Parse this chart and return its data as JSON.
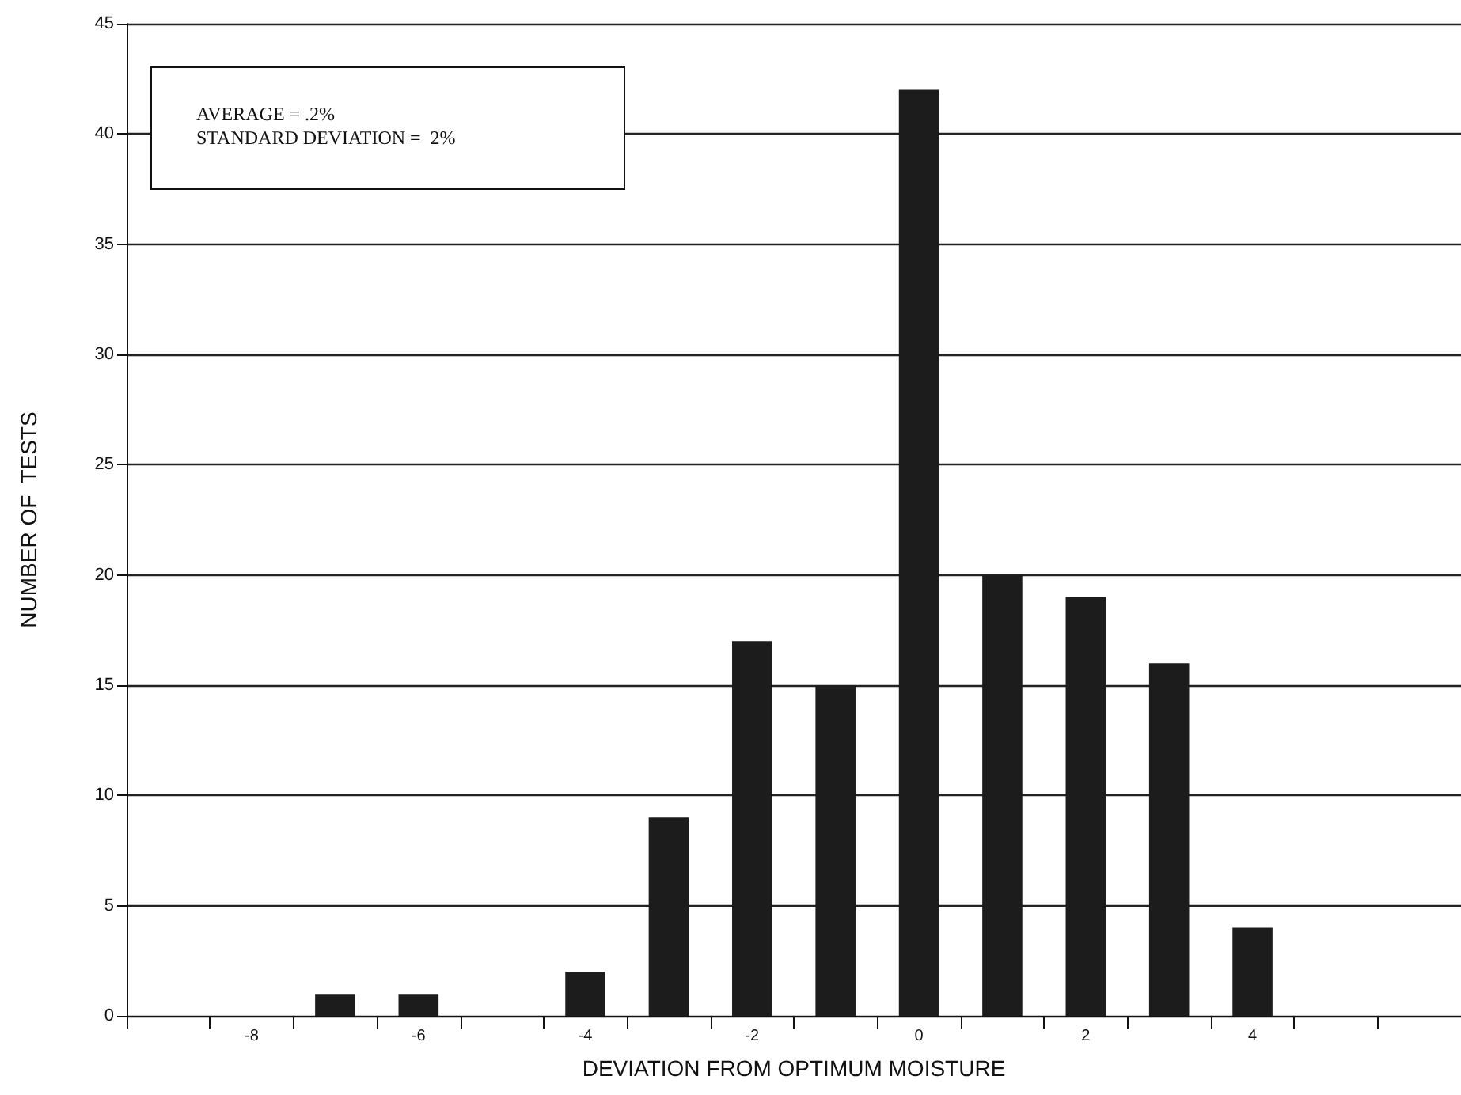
{
  "chart_data": {
    "type": "bar",
    "xlabel": "DEVIATION FROM OPTIMUM MOISTURE",
    "ylabel": "NUMBER OF  TESTS",
    "categories": [
      null,
      "-8",
      null,
      "-6",
      null,
      "-4",
      null,
      "-2",
      null,
      "0",
      null,
      "2",
      null,
      "4",
      null,
      null
    ],
    "values": [
      null,
      null,
      1,
      1,
      null,
      2,
      9,
      17,
      15,
      42,
      20,
      19,
      16,
      4,
      null,
      null
    ],
    "color": "#1c1c1c",
    "ylim": [
      0,
      45
    ],
    "yticks": [
      0,
      5,
      10,
      15,
      20,
      25,
      30,
      35,
      40,
      45
    ],
    "grid": "y",
    "annotations": [
      "AVERAGE = .2%",
      "STANDARD DEVIATION =  2%"
    ]
  }
}
